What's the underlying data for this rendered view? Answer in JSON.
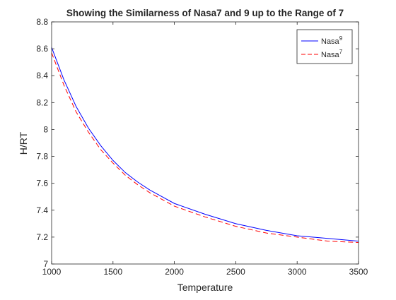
{
  "chart_data": {
    "type": "line",
    "title": "Showing the Similarness of Nasa7 and 9 up to the Range of 7",
    "xlabel": "Temperature",
    "ylabel": "H/RT",
    "xlim": [
      1000,
      3500
    ],
    "ylim": [
      7,
      8.8
    ],
    "xticks": [
      1000,
      1500,
      2000,
      2500,
      3000,
      3500
    ],
    "yticks": [
      7,
      7.2,
      7.4,
      7.6,
      7.8,
      8,
      8.2,
      8.4,
      8.6,
      8.8
    ],
    "grid": false,
    "legend_position": "top-right",
    "legend": [
      {
        "base": "Nasa",
        "sup": "9"
      },
      {
        "base": "Nasa",
        "sup": "7"
      }
    ],
    "series": [
      {
        "color": "#0000ff",
        "style": "solid",
        "x": [
          1000,
          1100,
          1200,
          1300,
          1400,
          1500,
          1600,
          1700,
          1800,
          1900,
          2000,
          2250,
          2500,
          2750,
          3000,
          3250,
          3500
        ],
        "y": [
          8.61,
          8.37,
          8.17,
          8.01,
          7.88,
          7.77,
          7.68,
          7.61,
          7.55,
          7.5,
          7.45,
          7.37,
          7.3,
          7.25,
          7.21,
          7.19,
          7.17
        ]
      },
      {
        "color": "#ff0000",
        "style": "dashed",
        "x": [
          1000,
          1100,
          1200,
          1300,
          1400,
          1500,
          1600,
          1700,
          1800,
          1900,
          2000,
          2250,
          2500,
          2750,
          3000,
          3250,
          3500
        ],
        "y": [
          8.57,
          8.33,
          8.13,
          7.98,
          7.85,
          7.75,
          7.66,
          7.59,
          7.53,
          7.48,
          7.43,
          7.35,
          7.28,
          7.23,
          7.2,
          7.17,
          7.16
        ]
      }
    ]
  }
}
